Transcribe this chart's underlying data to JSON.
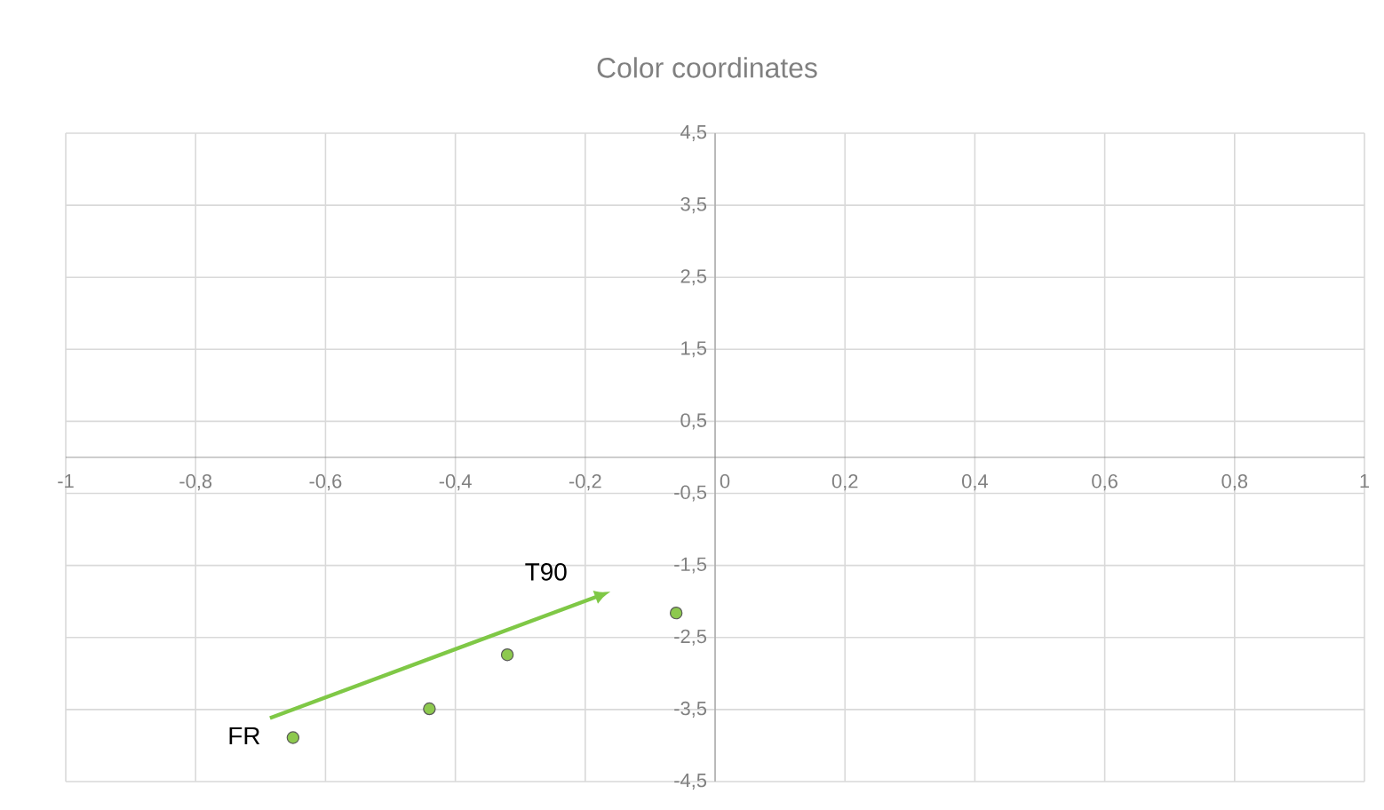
{
  "chart_data": {
    "type": "scatter",
    "title": "Color coordinates",
    "x": [
      -0.06,
      -0.32,
      -0.44,
      -0.65
    ],
    "series": [
      {
        "color": "#8dc94e",
        "values": [
          -2.16,
          -2.74,
          -3.49,
          -3.89
        ]
      }
    ],
    "marker": "circle",
    "grid": true,
    "xlim": [
      -1,
      1
    ],
    "xticks": [
      {
        "value": -1,
        "label": "-1"
      },
      {
        "value": -0.8,
        "label": "-0,8"
      },
      {
        "value": -0.6,
        "label": "-0,6"
      },
      {
        "value": -0.4,
        "label": "-0,4"
      },
      {
        "value": -0.2,
        "label": "-0,2"
      },
      {
        "value": 0,
        "label": "0"
      },
      {
        "value": 0.2,
        "label": "0,2"
      },
      {
        "value": 0.4,
        "label": "0,4"
      },
      {
        "value": 0.6,
        "label": "0,6"
      },
      {
        "value": 0.8,
        "label": "0,8"
      },
      {
        "value": 1,
        "label": "1"
      }
    ],
    "ylim": [
      -4.5,
      4.5
    ],
    "yticks": [
      {
        "value": -4.5,
        "label": "-4,5"
      },
      {
        "value": -3.5,
        "label": "-3,5"
      },
      {
        "value": -2.5,
        "label": "-2,5"
      },
      {
        "value": -1.5,
        "label": "-1,5"
      },
      {
        "value": -0.5,
        "label": "-0,5"
      },
      {
        "value": 0.5,
        "label": "0,5"
      },
      {
        "value": 1.5,
        "label": "1,5"
      },
      {
        "value": 2.5,
        "label": "2,5"
      },
      {
        "value": 3.5,
        "label": "3,5"
      },
      {
        "value": 4.5,
        "label": "4,5"
      }
    ],
    "annotations": [
      "FR",
      "T90"
    ]
  }
}
